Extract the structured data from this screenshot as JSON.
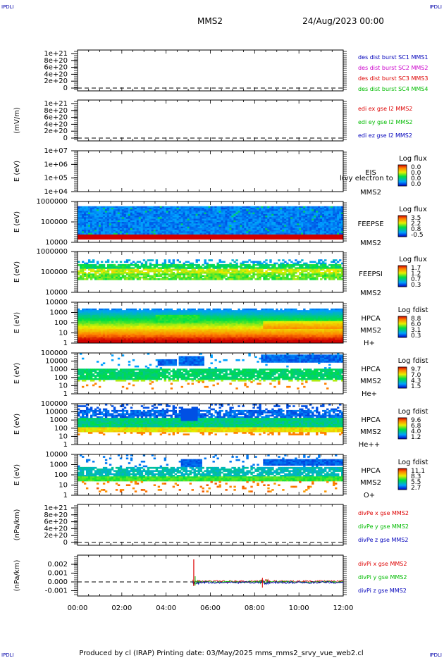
{
  "corner_marks": [
    "IPDLI",
    "IPDLI",
    "IPDLI",
    "IPDLI"
  ],
  "header": {
    "spacecraft": "MMS2",
    "date": "24/Aug/2023 00:00"
  },
  "footer": {
    "text": "Produced by cl (IRAP)   Printing date: 03/May/2025   mms_mms2_srvy_vue_web2.cl"
  },
  "colors": {
    "red": "#dd0000",
    "magenta": "#cc00cc",
    "blue": "#0000bb",
    "green": "#00bb00"
  },
  "chart_data": {
    "type": "multi-panel time series / spectrogram",
    "x_tick_labels": [
      "00:00",
      "02:00",
      "04:00",
      "06:00",
      "08:00",
      "10:00",
      "12:00"
    ],
    "x_range_hours": [
      0,
      12
    ],
    "panels": [
      {
        "id": "p1",
        "kind": "line",
        "ylabel": "",
        "yticks": [
          "1e+21",
          "8e+20",
          "6e+20",
          "4e+20",
          "2e+20",
          "0"
        ],
        "legend": [
          {
            "text": "des dist burst SC1 MMS1",
            "color": "blue"
          },
          {
            "text": "des dist burst SC2 MMS2",
            "color": "magenta"
          },
          {
            "text": "des dist burst SC3 MMS3",
            "color": "red"
          },
          {
            "text": "des dist burst SC4 MMS4",
            "color": "green"
          }
        ]
      },
      {
        "id": "p2",
        "kind": "line",
        "ylabel": "(mV/m)",
        "yticks": [
          "1e+21",
          "8e+20",
          "6e+20",
          "4e+20",
          "2e+20",
          "0"
        ],
        "legend": [
          {
            "text": "edi ex gse l2 MMS2",
            "color": "red"
          },
          {
            "text": "edi ey gse l2 MMS2",
            "color": "green"
          },
          {
            "text": "edi ez gse l2 MMS2",
            "color": "blue"
          }
        ]
      },
      {
        "id": "p3",
        "kind": "spectrogram",
        "ylabel": "E (eV)",
        "yticks": [
          "1e+07",
          "1e+06",
          "1e+05",
          "1e+04"
        ],
        "labels": [
          "EIS",
          "MMS2"
        ],
        "overlay": "l(vy electron to",
        "cbar_title": "Log flux",
        "cbar_ticks": [
          "0.0",
          "0.0",
          "0.0",
          "0.0"
        ]
      },
      {
        "id": "p4",
        "kind": "spectrogram",
        "ylabel": "E (eV)",
        "yticks": [
          "1000000",
          "100000",
          "10000"
        ],
        "labels": [
          "FEEPSE",
          "MMS2"
        ],
        "cbar_title": "Log flux",
        "cbar_ticks": [
          "3.5",
          "2.2",
          "0.8",
          "-0.5"
        ]
      },
      {
        "id": "p5",
        "kind": "spectrogram",
        "ylabel": "E (eV)",
        "yticks": [
          "1000000",
          "100000",
          "10000"
        ],
        "labels": [
          "FEEPSI",
          "MMS2"
        ],
        "cbar_title": "Log flux",
        "cbar_ticks": [
          "1.7",
          "1.2",
          "0.7",
          "0.3"
        ]
      },
      {
        "id": "p6",
        "kind": "spectrogram",
        "ylabel": "E (eV)",
        "yticks": [
          "10000",
          "1000",
          "100",
          "10",
          "1"
        ],
        "labels": [
          "HPCA",
          "MMS2",
          "H+"
        ],
        "cbar_title": "Log fdist",
        "cbar_ticks": [
          "8.8",
          "6.0",
          "3.1",
          "0.3"
        ]
      },
      {
        "id": "p7",
        "kind": "spectrogram",
        "ylabel": "E (eV)",
        "yticks": [
          "100000",
          "10000",
          "1000",
          "100",
          "10",
          "1"
        ],
        "labels": [
          "HPCA",
          "MMS2",
          "He+"
        ],
        "cbar_title": "Log fdist",
        "cbar_ticks": [
          "9.7",
          "7.0",
          "4.3",
          "1.5"
        ]
      },
      {
        "id": "p8",
        "kind": "spectrogram",
        "ylabel": "E (eV)",
        "yticks": [
          "100000",
          "10000",
          "1000",
          "100",
          "10",
          "1"
        ],
        "labels": [
          "HPCA",
          "MMS2",
          "He++"
        ],
        "cbar_title": "Log fdist",
        "cbar_ticks": [
          "9.6",
          "6.8",
          "4.0",
          "1.2"
        ]
      },
      {
        "id": "p9",
        "kind": "spectrogram",
        "ylabel": "E (eV)",
        "yticks": [
          "10000",
          "1000",
          "100",
          "10",
          "1"
        ],
        "labels": [
          "HPCA",
          "MMS2",
          "O+"
        ],
        "cbar_title": "Log fdist",
        "cbar_ticks": [
          "11.1",
          "8.3",
          "5.5",
          "2.7"
        ]
      },
      {
        "id": "p10",
        "kind": "line",
        "ylabel": "(nPa/km)",
        "yticks": [
          "1e+21",
          "8e+20",
          "6e+20",
          "4e+20",
          "2e+20",
          "0"
        ],
        "legend": [
          {
            "text": "divPe x gse MMS2",
            "color": "red"
          },
          {
            "text": "divPe y gse MMS2",
            "color": "green"
          },
          {
            "text": "divPe z gse MMS2",
            "color": "blue"
          }
        ]
      },
      {
        "id": "p11",
        "kind": "line",
        "ylabel": "(nPa/km)",
        "yticks": [
          "0.002",
          "0.001",
          "0.000",
          "-0.001"
        ],
        "legend": [
          {
            "text": "divPi x gse MMS2",
            "color": "red"
          },
          {
            "text": "divPi y gse MMS2",
            "color": "green"
          },
          {
            "text": "divPi z gse MMS2",
            "color": "blue"
          }
        ]
      }
    ]
  }
}
